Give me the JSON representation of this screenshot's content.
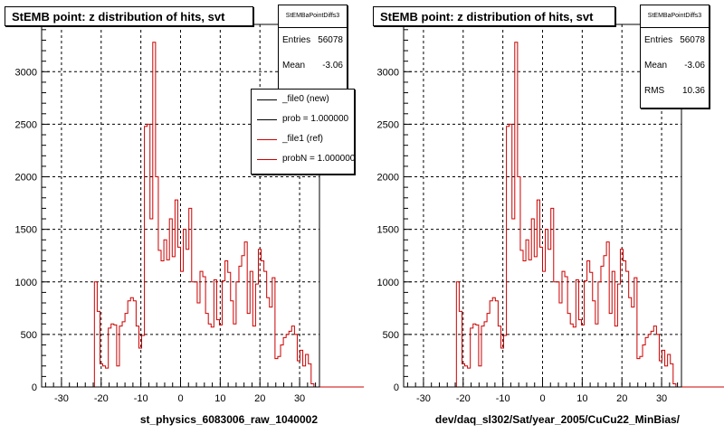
{
  "colors": {
    "hist": "#cc0000",
    "new_line": "#000000",
    "ref_line": "#cc0000"
  },
  "chart_data": [
    {
      "type": "histogram",
      "title": "StEMB point: z distribution of hits, svt",
      "xlabel": "st_physics_6083006_raw_1040002",
      "ylabel": "",
      "xlim": [
        -35,
        35
      ],
      "ylim": [
        0,
        3450
      ],
      "x_ticks": [
        -30,
        -20,
        -10,
        0,
        10,
        20,
        30
      ],
      "y_ticks": [
        0,
        500,
        1000,
        1500,
        2000,
        2500,
        3000
      ],
      "grid": true,
      "stats": {
        "name": "StEMBaPointDiffs3",
        "rows": [
          {
            "k": "Entries",
            "v": "56078"
          },
          {
            "k": "Mean",
            "v": "-3.06"
          }
        ]
      },
      "legend": {
        "placement": "top-right",
        "entries": [
          {
            "label": "_file0 (new)",
            "color": "#000000"
          },
          {
            "label": "prob = 1.000000",
            "color": "#000000"
          },
          {
            "label": "_file1 (ref)",
            "color": "#cc0000"
          },
          {
            "label": "probN = 1.000000",
            "color": "#cc0000"
          }
        ]
      },
      "bins": {
        "xmin": -35,
        "width": 0.7,
        "values": [
          0,
          0,
          0,
          0,
          0,
          0,
          0,
          0,
          0,
          0,
          0,
          0,
          0,
          0,
          0,
          0,
          0,
          0,
          0,
          1000,
          720,
          220,
          200,
          180,
          560,
          600,
          590,
          200,
          580,
          620,
          700,
          820,
          850,
          820,
          580,
          370,
          490,
          2480,
          2500,
          1600,
          3280,
          2000,
          1300,
          1200,
          1400,
          1210,
          1600,
          1240,
          1780,
          1330,
          1100,
          1500,
          1310,
          1700,
          1000,
          1000,
          800,
          1100,
          1050,
          700,
          600,
          570,
          1020,
          640,
          590,
          1010,
          1200,
          1090,
          820,
          600,
          1000,
          1150,
          1250,
          1380,
          700,
          1100,
          580,
          980,
          1310,
          1200,
          1100,
          850,
          760,
          1040,
          270,
          290,
          400,
          470,
          500,
          530,
          580,
          500,
          250,
          350,
          200,
          310,
          220,
          30,
          0,
          0,
          0,
          0,
          0,
          0,
          0,
          0,
          0,
          0,
          0,
          0,
          0,
          0,
          0,
          0,
          0,
          0
        ]
      }
    },
    {
      "type": "histogram",
      "title": "StEMB point: z distribution of hits, svt",
      "xlabel": "dev/daq_sl302/Sat/year_2005/CuCu22_MinBias/",
      "ylabel": "",
      "xlim": [
        -35,
        35
      ],
      "ylim": [
        0,
        3450
      ],
      "x_ticks": [
        -30,
        -20,
        -10,
        0,
        10,
        20,
        30
      ],
      "y_ticks": [
        0,
        500,
        1000,
        1500,
        2000,
        2500,
        3000
      ],
      "grid": true,
      "stats": {
        "name": "StEMBaPointDiffs3",
        "rows": [
          {
            "k": "Entries",
            "v": "56078"
          },
          {
            "k": "Mean",
            "v": "-3.06"
          },
          {
            "k": "RMS",
            "v": "10.36"
          }
        ]
      },
      "bins": {
        "xmin": -35,
        "width": 0.7,
        "values": [
          0,
          0,
          0,
          0,
          0,
          0,
          0,
          0,
          0,
          0,
          0,
          0,
          0,
          0,
          0,
          0,
          0,
          0,
          0,
          1000,
          720,
          220,
          200,
          180,
          560,
          600,
          590,
          200,
          580,
          620,
          700,
          820,
          850,
          820,
          580,
          370,
          490,
          2480,
          2500,
          1600,
          3280,
          2000,
          1300,
          1200,
          1400,
          1210,
          1600,
          1240,
          1780,
          1330,
          1100,
          1500,
          1310,
          1700,
          1000,
          1000,
          800,
          1100,
          1050,
          700,
          600,
          570,
          1020,
          640,
          590,
          1010,
          1200,
          1090,
          820,
          600,
          1000,
          1150,
          1250,
          1380,
          700,
          1100,
          580,
          980,
          1310,
          1200,
          1100,
          850,
          760,
          1040,
          270,
          290,
          400,
          470,
          500,
          530,
          580,
          500,
          250,
          350,
          200,
          310,
          220,
          30,
          0,
          0,
          0,
          0,
          0,
          0,
          0,
          0,
          0,
          0,
          0,
          0,
          0,
          0,
          0,
          0,
          0,
          0,
          0
        ]
      }
    }
  ]
}
